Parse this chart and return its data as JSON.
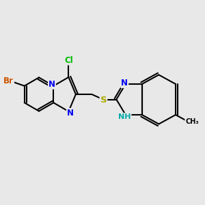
{
  "bg_color": "#E8E8E8",
  "bond_color": "#000000",
  "bond_width": 1.5,
  "atom_colors": {
    "Br": "#CC5500",
    "Cl": "#00BB00",
    "N": "#0000EE",
    "S": "#AAAA00",
    "NH": "#00AAAA",
    "C": "#000000",
    "H": "#000000"
  },
  "font_size_atom": 8.5,
  "fig_bg": "#E8E8E8"
}
